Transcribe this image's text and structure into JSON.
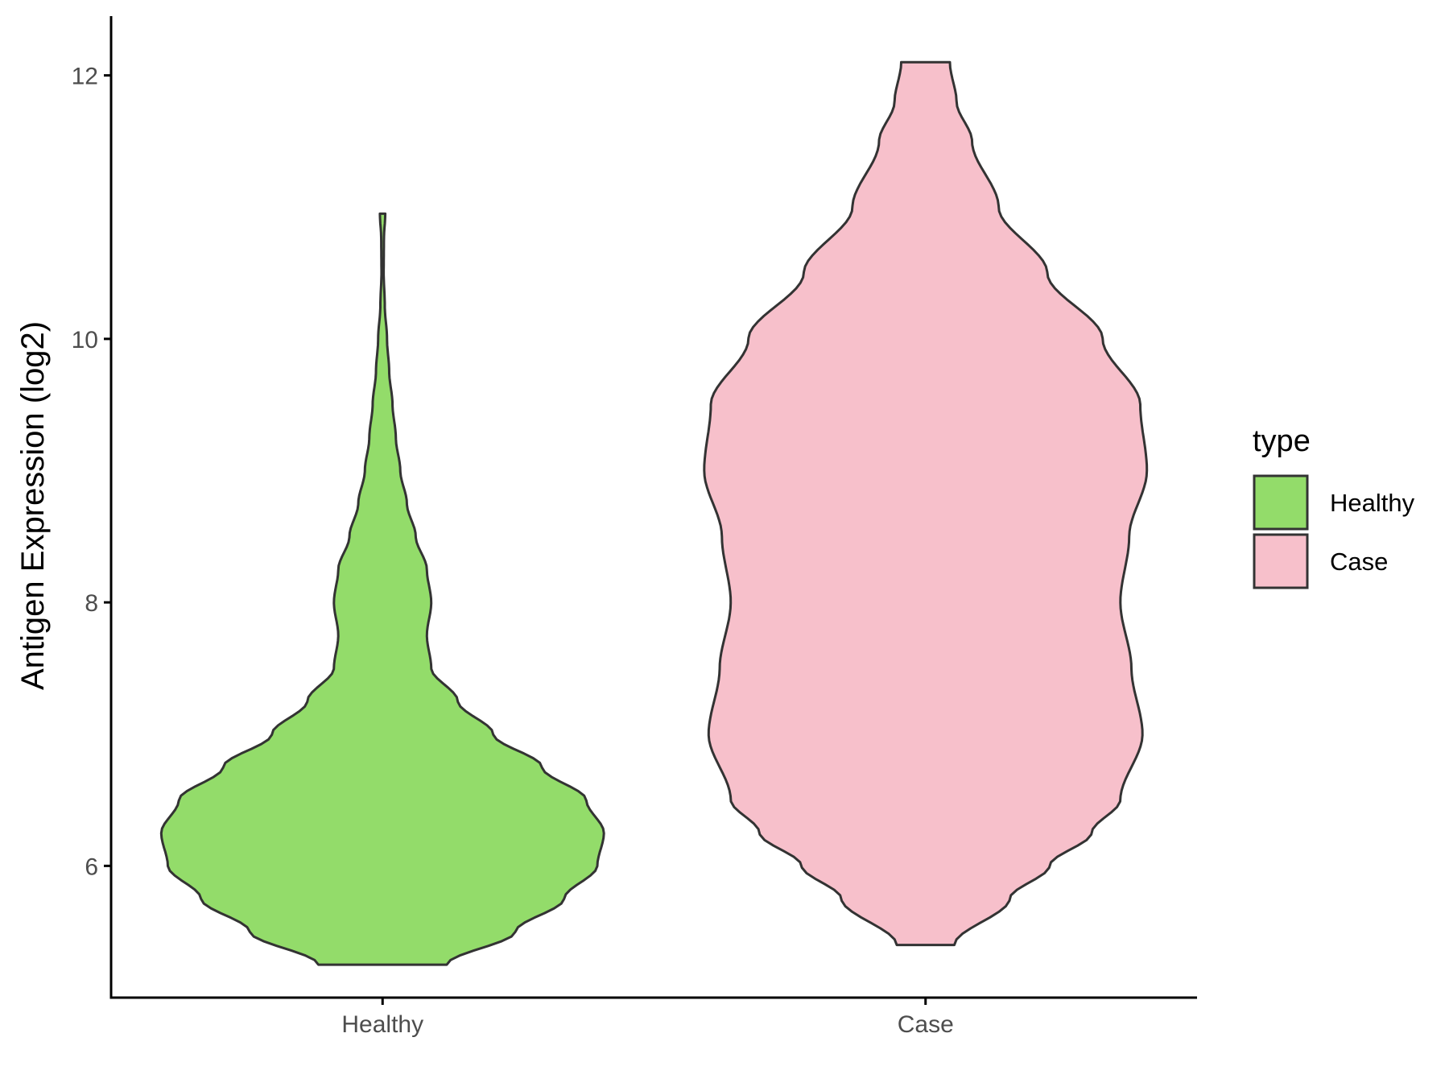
{
  "chart_data": {
    "type": "violin",
    "xlabel": "",
    "ylabel": "Antigen Expression (log2)",
    "categories": [
      "Healthy",
      "Case"
    ],
    "ylim": [
      5.0,
      12.45
    ],
    "yticks": [
      6,
      8,
      10,
      12
    ],
    "ytick_labels": [
      "6",
      "8",
      "10",
      "12"
    ],
    "grid": false,
    "legend": {
      "title": "type",
      "position": "right",
      "entries": [
        {
          "label": "Healthy",
          "color": "#93DC6A"
        },
        {
          "label": "Case",
          "color": "#F7C0CB"
        }
      ]
    },
    "series": [
      {
        "name": "Healthy",
        "color": "#93DC6A",
        "y_min": 5.25,
        "y_max": 10.95,
        "density_profile": [
          [
            5.25,
            0.29
          ],
          [
            5.5,
            0.6
          ],
          [
            5.75,
            0.82
          ],
          [
            6.0,
            0.97
          ],
          [
            6.25,
            1.0
          ],
          [
            6.5,
            0.92
          ],
          [
            6.75,
            0.72
          ],
          [
            7.0,
            0.5
          ],
          [
            7.25,
            0.34
          ],
          [
            7.5,
            0.22
          ],
          [
            7.75,
            0.2
          ],
          [
            8.0,
            0.22
          ],
          [
            8.25,
            0.2
          ],
          [
            8.5,
            0.15
          ],
          [
            8.75,
            0.11
          ],
          [
            9.0,
            0.08
          ],
          [
            9.25,
            0.06
          ],
          [
            9.5,
            0.045
          ],
          [
            9.75,
            0.03
          ],
          [
            10.0,
            0.02
          ],
          [
            10.25,
            0.01
          ],
          [
            10.5,
            0.005
          ],
          [
            10.75,
            0.006
          ],
          [
            10.95,
            0.012
          ]
        ]
      },
      {
        "name": "Case",
        "color": "#F7C0CB",
        "y_min": 5.4,
        "y_max": 12.1,
        "density_profile": [
          [
            5.4,
            0.13
          ],
          [
            5.75,
            0.38
          ],
          [
            6.0,
            0.56
          ],
          [
            6.25,
            0.75
          ],
          [
            6.5,
            0.88
          ],
          [
            7.0,
            0.98
          ],
          [
            7.5,
            0.93
          ],
          [
            8.0,
            0.88
          ],
          [
            8.5,
            0.92
          ],
          [
            9.0,
            1.0
          ],
          [
            9.5,
            0.97
          ],
          [
            10.0,
            0.8
          ],
          [
            10.5,
            0.55
          ],
          [
            11.0,
            0.33
          ],
          [
            11.5,
            0.21
          ],
          [
            11.8,
            0.14
          ],
          [
            12.1,
            0.11
          ]
        ]
      }
    ]
  }
}
